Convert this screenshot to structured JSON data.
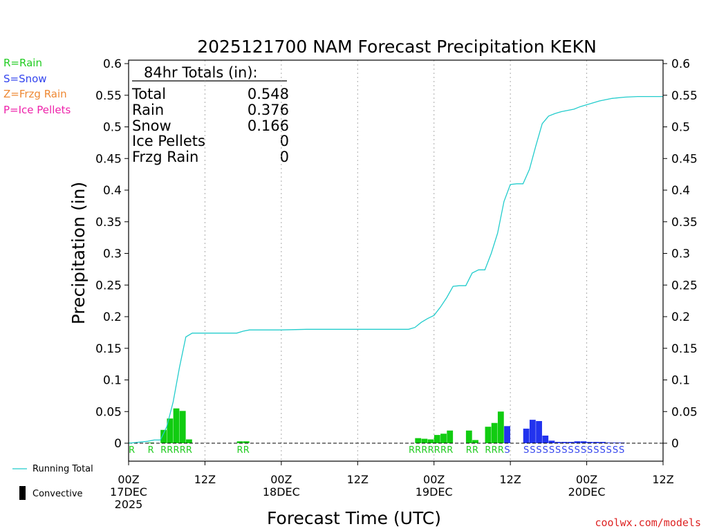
{
  "chart_data": {
    "type": "bar",
    "title": "2025121700 NAM Forecast Precipitation KEKN",
    "xlabel": "Forecast Time (UTC)",
    "ylabel": "Precipitation (in)",
    "ylim": [
      0,
      0.6
    ],
    "xlim_hours": [
      0,
      84
    ],
    "y_ticks": [
      0,
      0.05,
      0.1,
      0.15,
      0.2,
      0.25,
      0.3,
      0.35,
      0.4,
      0.45,
      0.5,
      0.55,
      0.6
    ],
    "y_tick_labels": [
      "0",
      "0.05",
      "0.1",
      "0.15",
      "0.2",
      "0.25",
      "0.3",
      "0.35",
      "0.4",
      "0.45",
      "0.5",
      "0.55",
      "0.6"
    ],
    "x_ticks": [
      {
        "hour": 0,
        "line1": "00Z",
        "line2": "17DEC",
        "line3": "2025"
      },
      {
        "hour": 12,
        "line1": "12Z",
        "line2": "",
        "line3": ""
      },
      {
        "hour": 24,
        "line1": "00Z",
        "line2": "18DEC",
        "line3": ""
      },
      {
        "hour": 36,
        "line1": "12Z",
        "line2": "",
        "line3": ""
      },
      {
        "hour": 48,
        "line1": "00Z",
        "line2": "19DEC",
        "line3": ""
      },
      {
        "hour": 60,
        "line1": "12Z",
        "line2": "",
        "line3": ""
      },
      {
        "hour": 72,
        "line1": "00Z",
        "line2": "20DEC",
        "line3": ""
      },
      {
        "hour": 84,
        "line1": "12Z",
        "line2": "",
        "line3": ""
      }
    ],
    "legend_types": [
      {
        "label": "R=Rain",
        "color": "#22cc22"
      },
      {
        "label": "S=Snow",
        "color": "#3344ee"
      },
      {
        "label": "Z=Frzg Rain",
        "color": "#ee8833"
      },
      {
        "label": "P=Ice Pellets",
        "color": "#ee22aa"
      }
    ],
    "legend_series": {
      "running_total": "Running Total",
      "convective": "Convective"
    },
    "totals": {
      "header": "84hr Totals (in):",
      "rows": [
        {
          "label": "Total",
          "value": "0.548"
        },
        {
          "label": "Rain",
          "value": "0.376"
        },
        {
          "label": "Snow",
          "value": "0.166"
        },
        {
          "label": "Ice Pellets",
          "value": "0"
        },
        {
          "label": "Frzg Rain",
          "value": "0"
        }
      ]
    },
    "colors": {
      "rain": "#11cc11",
      "snow": "#2233ee",
      "running_total": "#22cccc",
      "convective": "#000000",
      "grid": "#aaaaaa"
    },
    "bars": [
      {
        "hour": 1,
        "value": 0.001,
        "type": "R"
      },
      {
        "hour": 4,
        "value": 0.001,
        "type": "R"
      },
      {
        "hour": 6,
        "value": 0.021,
        "type": "R"
      },
      {
        "hour": 7,
        "value": 0.039,
        "type": "R"
      },
      {
        "hour": 8,
        "value": 0.055,
        "type": "R"
      },
      {
        "hour": 9,
        "value": 0.051,
        "type": "R"
      },
      {
        "hour": 10,
        "value": 0.006,
        "type": "R"
      },
      {
        "hour": 18,
        "value": 0.003,
        "type": "R"
      },
      {
        "hour": 19,
        "value": 0.003,
        "type": "R"
      },
      {
        "hour": 46,
        "value": 0.008,
        "type": "R"
      },
      {
        "hour": 47,
        "value": 0.007,
        "type": "R"
      },
      {
        "hour": 48,
        "value": 0.006,
        "type": "R"
      },
      {
        "hour": 49,
        "value": 0.013,
        "type": "R"
      },
      {
        "hour": 50,
        "value": 0.015,
        "type": "R"
      },
      {
        "hour": 51,
        "value": 0.02,
        "type": "R"
      },
      {
        "hour": 54,
        "value": 0.02,
        "type": "R"
      },
      {
        "hour": 55,
        "value": 0.005,
        "type": "R"
      },
      {
        "hour": 57,
        "value": 0.026,
        "type": "R"
      },
      {
        "hour": 58,
        "value": 0.032,
        "type": "R"
      },
      {
        "hour": 59,
        "value": 0.05,
        "type": "R"
      },
      {
        "hour": 60,
        "value": 0.027,
        "type": "S"
      },
      {
        "hour": 63,
        "value": 0.023,
        "type": "S"
      },
      {
        "hour": 64,
        "value": 0.037,
        "type": "S"
      },
      {
        "hour": 65,
        "value": 0.035,
        "type": "S"
      },
      {
        "hour": 66,
        "value": 0.012,
        "type": "S"
      },
      {
        "hour": 67,
        "value": 0.004,
        "type": "S"
      },
      {
        "hour": 68,
        "value": 0.002,
        "type": "S"
      },
      {
        "hour": 69,
        "value": 0.002,
        "type": "S"
      },
      {
        "hour": 70,
        "value": 0.002,
        "type": "S"
      },
      {
        "hour": 71,
        "value": 0.003,
        "type": "S"
      },
      {
        "hour": 72,
        "value": 0.003,
        "type": "S"
      },
      {
        "hour": 73,
        "value": 0.002,
        "type": "S"
      },
      {
        "hour": 74,
        "value": 0.002,
        "type": "S"
      },
      {
        "hour": 75,
        "value": 0.002,
        "type": "S"
      },
      {
        "hour": 76,
        "value": 0.001,
        "type": "S"
      },
      {
        "hour": 77,
        "value": 0.001,
        "type": "S"
      },
      {
        "hour": 78,
        "value": 0.001,
        "type": "S"
      }
    ],
    "type_markers": [
      {
        "hour": 1,
        "letter": "R"
      },
      {
        "hour": 4,
        "letter": "R"
      },
      {
        "hour": 6,
        "letter": "R"
      },
      {
        "hour": 7,
        "letter": "R"
      },
      {
        "hour": 8,
        "letter": "R"
      },
      {
        "hour": 9,
        "letter": "R"
      },
      {
        "hour": 10,
        "letter": "R"
      },
      {
        "hour": 18,
        "letter": "R"
      },
      {
        "hour": 19,
        "letter": "R"
      },
      {
        "hour": 45,
        "letter": "R"
      },
      {
        "hour": 46,
        "letter": "R"
      },
      {
        "hour": 47,
        "letter": "R"
      },
      {
        "hour": 48,
        "letter": "R"
      },
      {
        "hour": 49,
        "letter": "R"
      },
      {
        "hour": 50,
        "letter": "R"
      },
      {
        "hour": 51,
        "letter": "R"
      },
      {
        "hour": 54,
        "letter": "R"
      },
      {
        "hour": 55,
        "letter": "R"
      },
      {
        "hour": 57,
        "letter": "R"
      },
      {
        "hour": 58,
        "letter": "R"
      },
      {
        "hour": 59,
        "letter": "R"
      },
      {
        "hour": 60,
        "letter": "S"
      },
      {
        "hour": 63,
        "letter": "S"
      },
      {
        "hour": 64,
        "letter": "S"
      },
      {
        "hour": 65,
        "letter": "S"
      },
      {
        "hour": 66,
        "letter": "S"
      },
      {
        "hour": 67,
        "letter": "S"
      },
      {
        "hour": 68,
        "letter": "S"
      },
      {
        "hour": 69,
        "letter": "S"
      },
      {
        "hour": 70,
        "letter": "S"
      },
      {
        "hour": 71,
        "letter": "S"
      },
      {
        "hour": 72,
        "letter": "S"
      },
      {
        "hour": 73,
        "letter": "S"
      },
      {
        "hour": 74,
        "letter": "S"
      },
      {
        "hour": 75,
        "letter": "S"
      },
      {
        "hour": 76,
        "letter": "S"
      },
      {
        "hour": 77,
        "letter": "S"
      },
      {
        "hour": 78,
        "letter": "S"
      }
    ],
    "running_total": [
      {
        "hour": 0,
        "value": 0
      },
      {
        "hour": 1,
        "value": 0.001
      },
      {
        "hour": 2,
        "value": 0.002
      },
      {
        "hour": 3,
        "value": 0.003
      },
      {
        "hour": 4,
        "value": 0.005
      },
      {
        "hour": 5,
        "value": 0.005
      },
      {
        "hour": 6,
        "value": 0.026
      },
      {
        "hour": 7,
        "value": 0.065
      },
      {
        "hour": 8,
        "value": 0.12
      },
      {
        "hour": 9,
        "value": 0.168
      },
      {
        "hour": 10,
        "value": 0.174
      },
      {
        "hour": 11,
        "value": 0.174
      },
      {
        "hour": 17,
        "value": 0.174
      },
      {
        "hour": 18,
        "value": 0.177
      },
      {
        "hour": 19,
        "value": 0.179
      },
      {
        "hour": 20,
        "value": 0.179
      },
      {
        "hour": 24,
        "value": 0.179
      },
      {
        "hour": 28,
        "value": 0.18
      },
      {
        "hour": 44,
        "value": 0.18
      },
      {
        "hour": 45,
        "value": 0.183
      },
      {
        "hour": 46,
        "value": 0.191
      },
      {
        "hour": 47,
        "value": 0.197
      },
      {
        "hour": 48,
        "value": 0.202
      },
      {
        "hour": 49,
        "value": 0.215
      },
      {
        "hour": 50,
        "value": 0.23
      },
      {
        "hour": 51,
        "value": 0.248
      },
      {
        "hour": 52,
        "value": 0.249
      },
      {
        "hour": 53,
        "value": 0.249
      },
      {
        "hour": 54,
        "value": 0.269
      },
      {
        "hour": 55,
        "value": 0.274
      },
      {
        "hour": 56,
        "value": 0.274
      },
      {
        "hour": 57,
        "value": 0.3
      },
      {
        "hour": 58,
        "value": 0.332
      },
      {
        "hour": 59,
        "value": 0.382
      },
      {
        "hour": 60,
        "value": 0.409
      },
      {
        "hour": 61,
        "value": 0.41
      },
      {
        "hour": 62,
        "value": 0.41
      },
      {
        "hour": 63,
        "value": 0.433
      },
      {
        "hour": 64,
        "value": 0.47
      },
      {
        "hour": 65,
        "value": 0.505
      },
      {
        "hour": 66,
        "value": 0.517
      },
      {
        "hour": 67,
        "value": 0.521
      },
      {
        "hour": 68,
        "value": 0.524
      },
      {
        "hour": 70,
        "value": 0.528
      },
      {
        "hour": 71,
        "value": 0.532
      },
      {
        "hour": 72,
        "value": 0.535
      },
      {
        "hour": 74,
        "value": 0.541
      },
      {
        "hour": 76,
        "value": 0.545
      },
      {
        "hour": 78,
        "value": 0.547
      },
      {
        "hour": 80,
        "value": 0.548
      },
      {
        "hour": 84,
        "value": 0.548
      }
    ]
  },
  "footer": {
    "credit": "coolwx.com/models"
  }
}
